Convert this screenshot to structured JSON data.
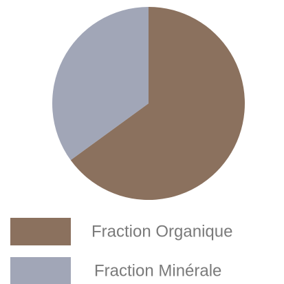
{
  "chart_data": {
    "type": "pie",
    "categories": [
      "Fraction Organique",
      "Fraction Minérale"
    ],
    "values": [
      65,
      35
    ],
    "colors": [
      "#8b715e",
      "#a1a6b7"
    ]
  }
}
